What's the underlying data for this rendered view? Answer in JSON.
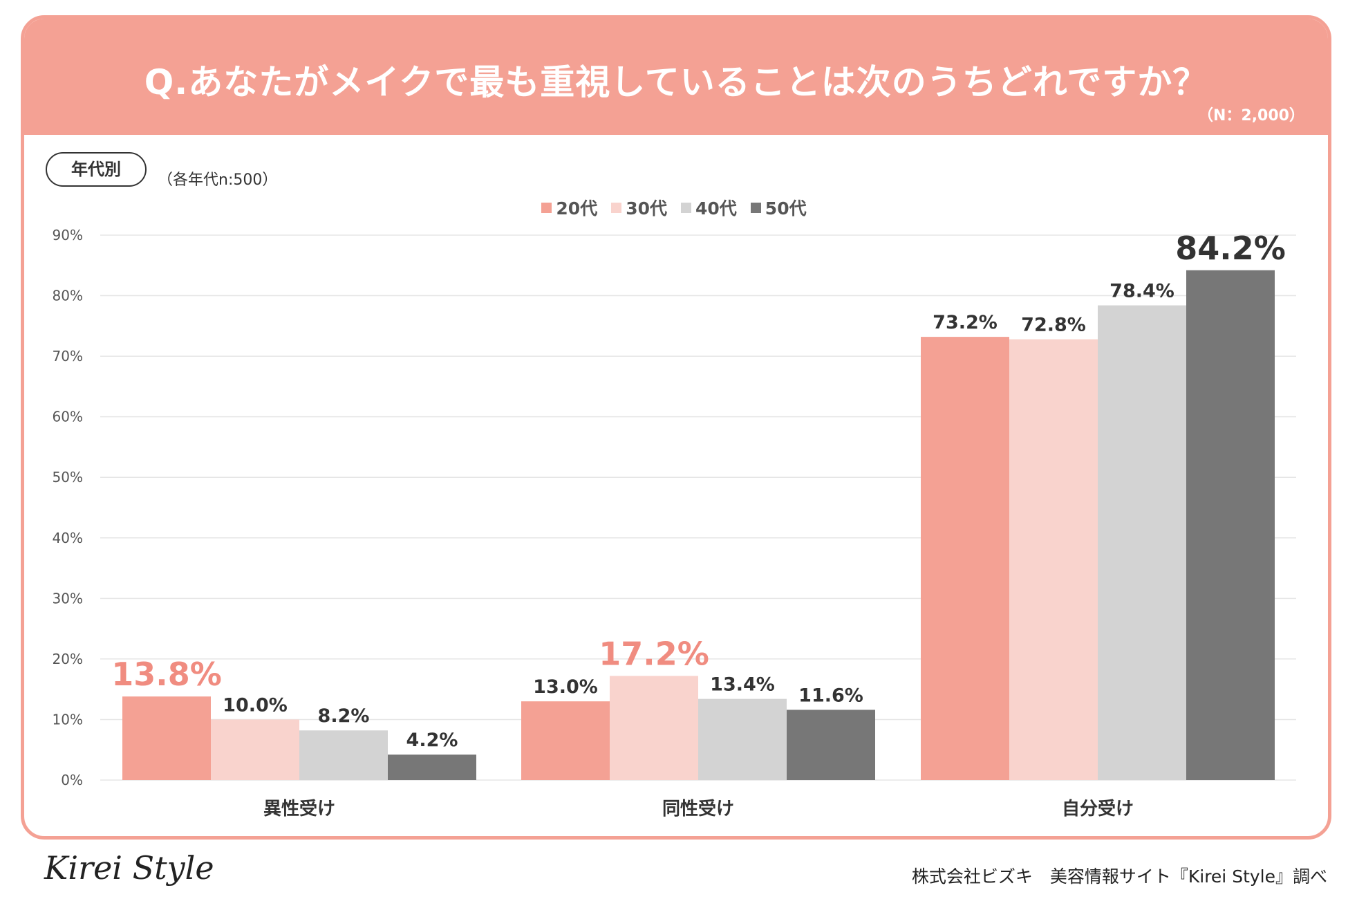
{
  "header": {
    "title": "Q.あなたがメイクで最も重視していることは次のうちどれですか？",
    "sample_size": "（N：2,000）"
  },
  "segment": {
    "badge": "年代別",
    "note": "（各年代n:500）"
  },
  "colors": {
    "card_border": "#f4a194",
    "highlight_text": "#f08c80",
    "label_text": "#333333"
  },
  "chart_data": {
    "type": "bar",
    "title": "Q.あなたがメイクで最も重視していることは次のうちどれですか？",
    "categories": [
      "異性受け",
      "同性受け",
      "自分受け"
    ],
    "series": [
      {
        "name": "20代",
        "color": "#f4a194",
        "values": [
          13.8,
          13.0,
          73.2
        ],
        "labels": [
          "13.8%",
          "13.0%",
          "73.2%"
        ]
      },
      {
        "name": "30代",
        "color": "#f9d3cd",
        "values": [
          10.0,
          17.2,
          72.8
        ],
        "labels": [
          "10.0%",
          "17.2%",
          "72.8%"
        ]
      },
      {
        "name": "40代",
        "color": "#d3d3d3",
        "values": [
          8.2,
          13.4,
          78.4
        ],
        "labels": [
          "8.2%",
          "13.4%",
          "78.4%"
        ]
      },
      {
        "name": "50代",
        "color": "#777777",
        "values": [
          4.2,
          11.6,
          84.2
        ],
        "labels": [
          "4.2%",
          "11.6%",
          "84.2%"
        ]
      }
    ],
    "highlights": [
      {
        "category": 0,
        "series": 0
      },
      {
        "category": 1,
        "series": 1
      },
      {
        "category": 2,
        "series": 3
      }
    ],
    "ylim": [
      0,
      90
    ],
    "yticks": [
      0,
      10,
      20,
      30,
      40,
      50,
      60,
      70,
      80,
      90
    ],
    "ytick_labels": [
      "0%",
      "10%",
      "20%",
      "30%",
      "40%",
      "50%",
      "60%",
      "70%",
      "80%",
      "90%"
    ],
    "xlabel": "",
    "ylabel": "",
    "grid": true,
    "legend": "top-center"
  },
  "footer": {
    "logo": "Kirei Style",
    "credit": "株式会社ビズキ　美容情報サイト『Kirei Style』調べ"
  }
}
